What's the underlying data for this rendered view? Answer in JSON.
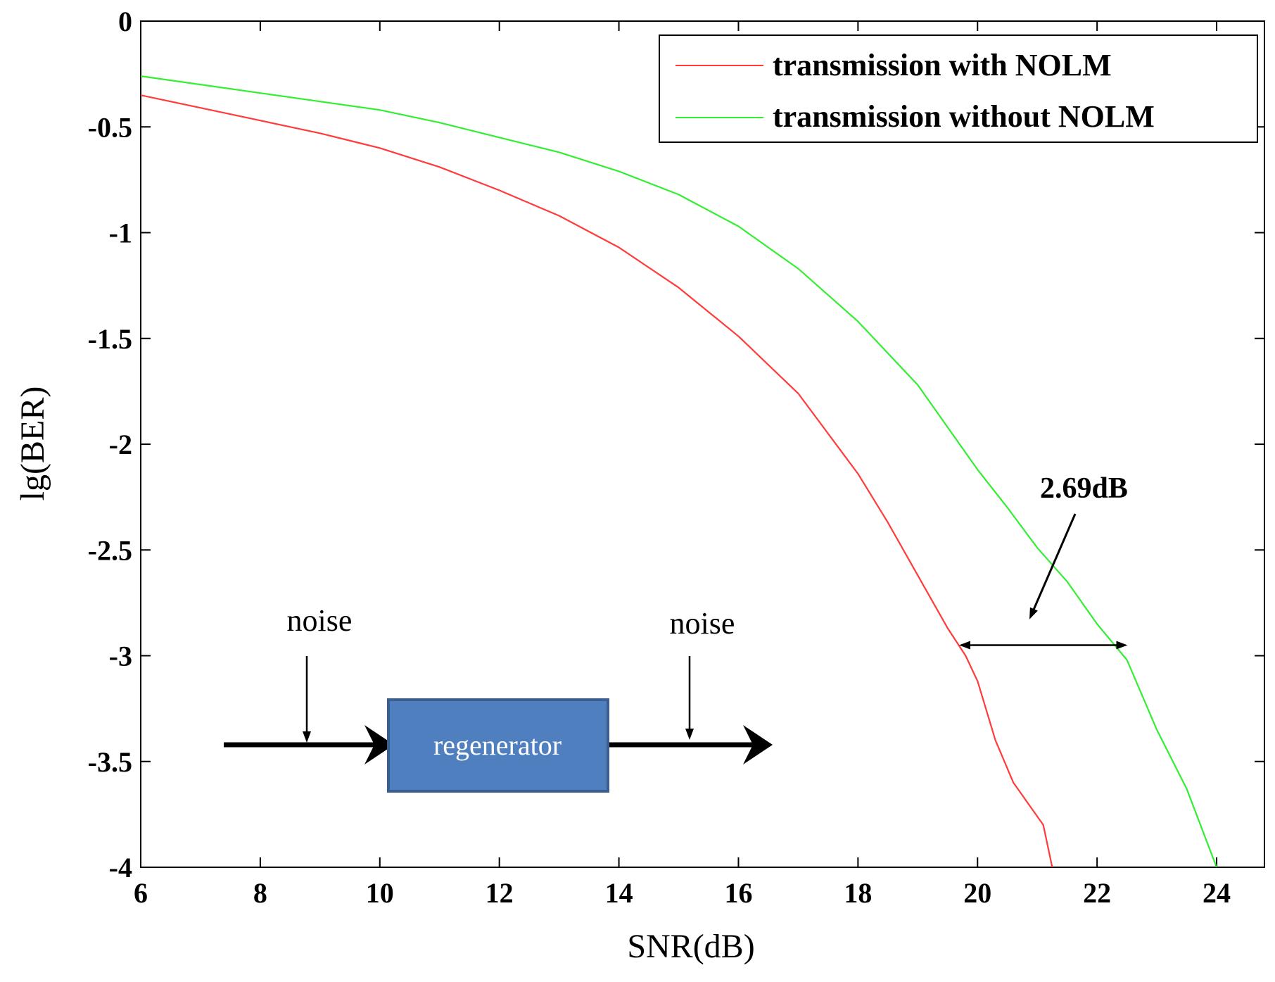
{
  "chart_data": {
    "type": "line",
    "title": "",
    "xlabel": "SNR(dB)",
    "ylabel": "lg(BER)",
    "xlim": [
      6,
      24.8
    ],
    "ylim": [
      -4,
      0
    ],
    "x_ticks": [
      6,
      8,
      10,
      12,
      14,
      16,
      18,
      20,
      22,
      24
    ],
    "x_tick_labels": [
      "6",
      "8",
      "10",
      "12",
      "14",
      "16",
      "18",
      "20",
      "22",
      "24"
    ],
    "y_ticks": [
      0,
      -0.5,
      -1,
      -1.5,
      -2,
      -2.5,
      -3,
      -3.5,
      -4
    ],
    "y_tick_labels": [
      "0",
      "-0.5",
      "-1",
      "-1.5",
      "-2",
      "-2.5",
      "-3",
      "-3.5",
      "-4"
    ],
    "grid": false,
    "legend_position": "top-right",
    "series": [
      {
        "name": "transmission with NOLM",
        "color": "#ff3b3b",
        "x": [
          6,
          7,
          8,
          9,
          10,
          11,
          12,
          13,
          14,
          15,
          16,
          17,
          18,
          18.5,
          19,
          19.5,
          19.8,
          20,
          20.3,
          20.6,
          20.9,
          21.1,
          21.25
        ],
        "y": [
          -0.35,
          -0.41,
          -0.47,
          -0.53,
          -0.6,
          -0.69,
          -0.8,
          -0.92,
          -1.07,
          -1.26,
          -1.49,
          -1.76,
          -2.14,
          -2.37,
          -2.62,
          -2.87,
          -3.0,
          -3.12,
          -3.4,
          -3.6,
          -3.72,
          -3.8,
          -4.0
        ]
      },
      {
        "name": "transmission without NOLM",
        "color": "#33ee33",
        "x": [
          6,
          7,
          8,
          9,
          10,
          11,
          12,
          13,
          14,
          15,
          16,
          17,
          18,
          19,
          20,
          20.5,
          21,
          21.5,
          22,
          22.5,
          23,
          23.5,
          24
        ],
        "y": [
          -0.26,
          -0.3,
          -0.34,
          -0.38,
          -0.42,
          -0.48,
          -0.55,
          -0.62,
          -0.71,
          -0.82,
          -0.97,
          -1.17,
          -1.42,
          -1.72,
          -2.12,
          -2.3,
          -2.49,
          -2.65,
          -2.85,
          -3.02,
          -3.35,
          -3.63,
          -4.0
        ]
      }
    ],
    "annotations": {
      "gap_label": "2.69dB",
      "gap_arrow_y": -2.95,
      "gap_x_from": 19.75,
      "gap_x_to": 22.45,
      "inset_noise_left": "noise",
      "inset_noise_right": "noise",
      "inset_box_label": "regenerator",
      "inset_box_color": "#4f7fbf"
    }
  }
}
